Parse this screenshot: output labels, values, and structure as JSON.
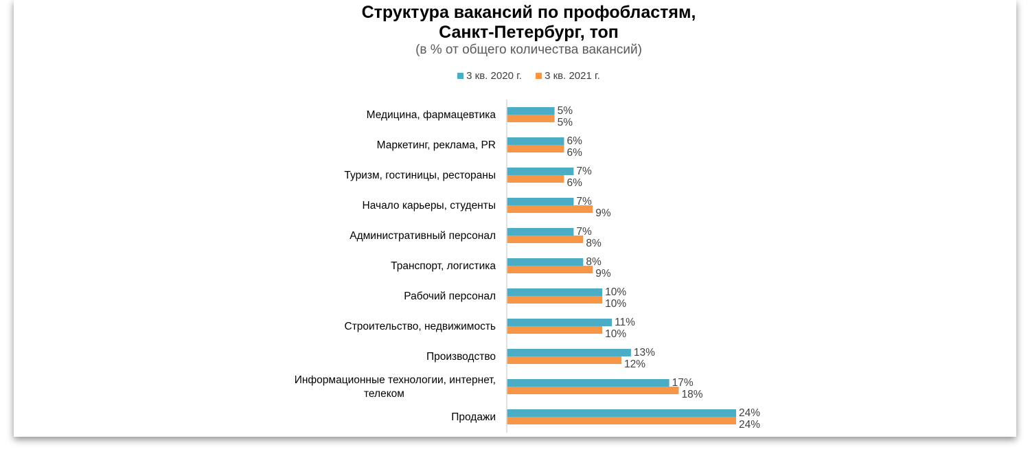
{
  "chart_data": {
    "type": "bar",
    "orientation": "horizontal",
    "title": [
      "Структура вакансий по профобластям,",
      "Санкт-Петербург, топ"
    ],
    "subtitle": "(в % от общего количества вакансий)",
    "legend_position": "top",
    "categories": [
      [
        "Медицина, фармацевтика"
      ],
      [
        "Маркетинг, реклама, PR"
      ],
      [
        "Туризм, гостиницы, рестораны"
      ],
      [
        "Начало карьеры, студенты"
      ],
      [
        "Административный персонал"
      ],
      [
        "Транспорт, логистика"
      ],
      [
        "Рабочий персонал"
      ],
      [
        "Строительство, недвижимость"
      ],
      [
        "Производство"
      ],
      [
        "Информационные технологии, интернет,",
        "телеком"
      ],
      [
        "Продажи"
      ]
    ],
    "series": [
      {
        "name": "3 кв. 2020 г.",
        "color": "#4BACC6",
        "values": [
          5,
          6,
          7,
          7,
          7,
          8,
          10,
          11,
          13,
          17,
          24
        ],
        "labels": [
          "5%",
          "6%",
          "7%",
          "7%",
          "7%",
          "8%",
          "10%",
          "11%",
          "13%",
          "17%",
          "24%"
        ]
      },
      {
        "name": "3 кв. 2021 г.",
        "color": "#F79646",
        "values": [
          5,
          6,
          6,
          9,
          8,
          9,
          10,
          10,
          12,
          18,
          24
        ],
        "labels": [
          "5%",
          "6%",
          "6%",
          "9%",
          "8%",
          "9%",
          "10%",
          "10%",
          "12%",
          "18%",
          "24%"
        ]
      }
    ],
    "xlabel": "",
    "ylabel": "",
    "xlim": [
      0,
      24
    ],
    "grid": false
  }
}
